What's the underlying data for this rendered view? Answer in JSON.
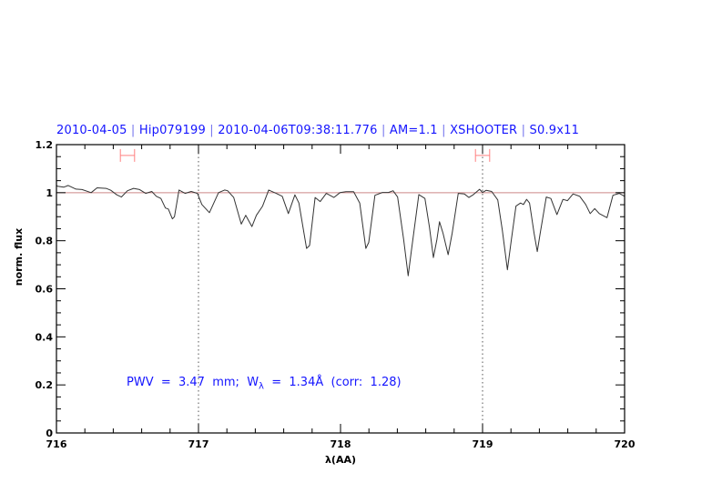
{
  "title_parts": [
    "2010-04-05",
    "Hip079199",
    "2010-04-06T09:38:11.776",
    "AM=1.1",
    "XSHOOTER",
    "S0.9x11"
  ],
  "annotation": {
    "pwv": "PWV  =  3.47  mm;  W",
    "sub": "λ",
    "rest": "  =  1.34Å  (corr:  1.28)"
  },
  "colors": {
    "text": "#1515ff",
    "spectrum": "#333333",
    "continuum": "#cc8888",
    "error_bar": "#ff8080",
    "marker_lines": "#555555"
  },
  "chart_data": {
    "type": "line",
    "title": "2010-04-05 | Hip079199 | 2010-04-06T09:38:11.776 | AM=1.1 | XSHOOTER | S0.9x11",
    "xlabel": "λ(AA)",
    "ylabel": "norm. flux",
    "xlim": [
      716,
      720
    ],
    "ylim": [
      0,
      1.2
    ],
    "xticks": [
      "716",
      "717",
      "718",
      "719",
      "720"
    ],
    "yticks": [
      "0",
      "0.2",
      "0.4",
      "0.6",
      "0.8",
      "1",
      "1.2"
    ],
    "grid": false,
    "continuum_level": 1.0,
    "vertical_markers": [
      717,
      719
    ],
    "error_bars": [
      {
        "center": 716.5,
        "halfwidth": 0.05,
        "y": 1.155
      },
      {
        "center": 719.0,
        "halfwidth": 0.05,
        "y": 1.155
      }
    ],
    "series": [
      {
        "x": [
          716.0,
          716.008,
          716.051,
          716.083,
          716.137,
          716.18,
          716.244,
          716.286,
          716.35,
          716.383,
          716.425,
          716.457,
          716.5,
          716.543,
          716.585,
          716.628,
          716.671,
          716.703,
          716.735,
          716.767,
          716.788,
          716.816,
          716.831,
          716.863,
          716.906,
          716.949,
          716.992,
          717.024,
          717.077,
          717.141,
          717.184,
          717.205,
          717.248,
          717.301,
          717.333,
          717.376,
          717.408,
          717.451,
          717.494,
          717.547,
          717.59,
          717.633,
          717.679,
          717.707,
          717.761,
          717.782,
          717.821,
          717.857,
          717.9,
          717.953,
          717.996,
          718.038,
          718.092,
          718.135,
          718.178,
          718.199,
          718.242,
          718.295,
          718.338,
          718.37,
          718.402,
          718.444,
          718.476,
          718.498,
          718.551,
          718.594,
          718.626,
          718.654,
          718.679,
          718.697,
          718.722,
          718.758,
          718.786,
          718.829,
          718.872,
          718.904,
          718.936,
          718.979,
          719.0,
          719.026,
          719.064,
          719.107,
          719.139,
          719.175,
          719.203,
          719.235,
          719.267,
          719.288,
          719.31,
          719.331,
          719.363,
          719.385,
          719.406,
          719.449,
          719.481,
          719.524,
          719.566,
          719.598,
          719.637,
          719.684,
          719.726,
          719.758,
          719.79,
          719.822,
          719.876,
          719.918,
          719.962,
          720.0
        ],
        "y": [
          1.03,
          1.027,
          1.023,
          1.03,
          1.015,
          1.013,
          1.0,
          1.02,
          1.018,
          1.01,
          0.991,
          0.982,
          1.008,
          1.018,
          1.013,
          0.997,
          1.005,
          0.985,
          0.976,
          0.936,
          0.932,
          0.891,
          0.9,
          1.011,
          0.997,
          1.005,
          0.997,
          0.951,
          0.917,
          1.0,
          1.011,
          1.008,
          0.98,
          0.869,
          0.906,
          0.859,
          0.906,
          0.944,
          1.011,
          0.997,
          0.985,
          0.913,
          0.991,
          0.957,
          0.768,
          0.78,
          0.98,
          0.963,
          0.997,
          0.98,
          1.0,
          1.004,
          1.004,
          0.957,
          0.768,
          0.793,
          0.989,
          1.001,
          1.001,
          1.008,
          0.982,
          0.806,
          0.654,
          0.755,
          0.992,
          0.976,
          0.856,
          0.73,
          0.806,
          0.879,
          0.831,
          0.742,
          0.831,
          0.997,
          0.995,
          0.98,
          0.992,
          1.014,
          1.001,
          1.01,
          1.005,
          0.97,
          0.844,
          0.679,
          0.806,
          0.944,
          0.957,
          0.951,
          0.972,
          0.957,
          0.831,
          0.755,
          0.831,
          0.982,
          0.976,
          0.909,
          0.972,
          0.967,
          0.995,
          0.985,
          0.951,
          0.913,
          0.934,
          0.913,
          0.896,
          0.989,
          0.997,
          0.985
        ]
      }
    ]
  }
}
